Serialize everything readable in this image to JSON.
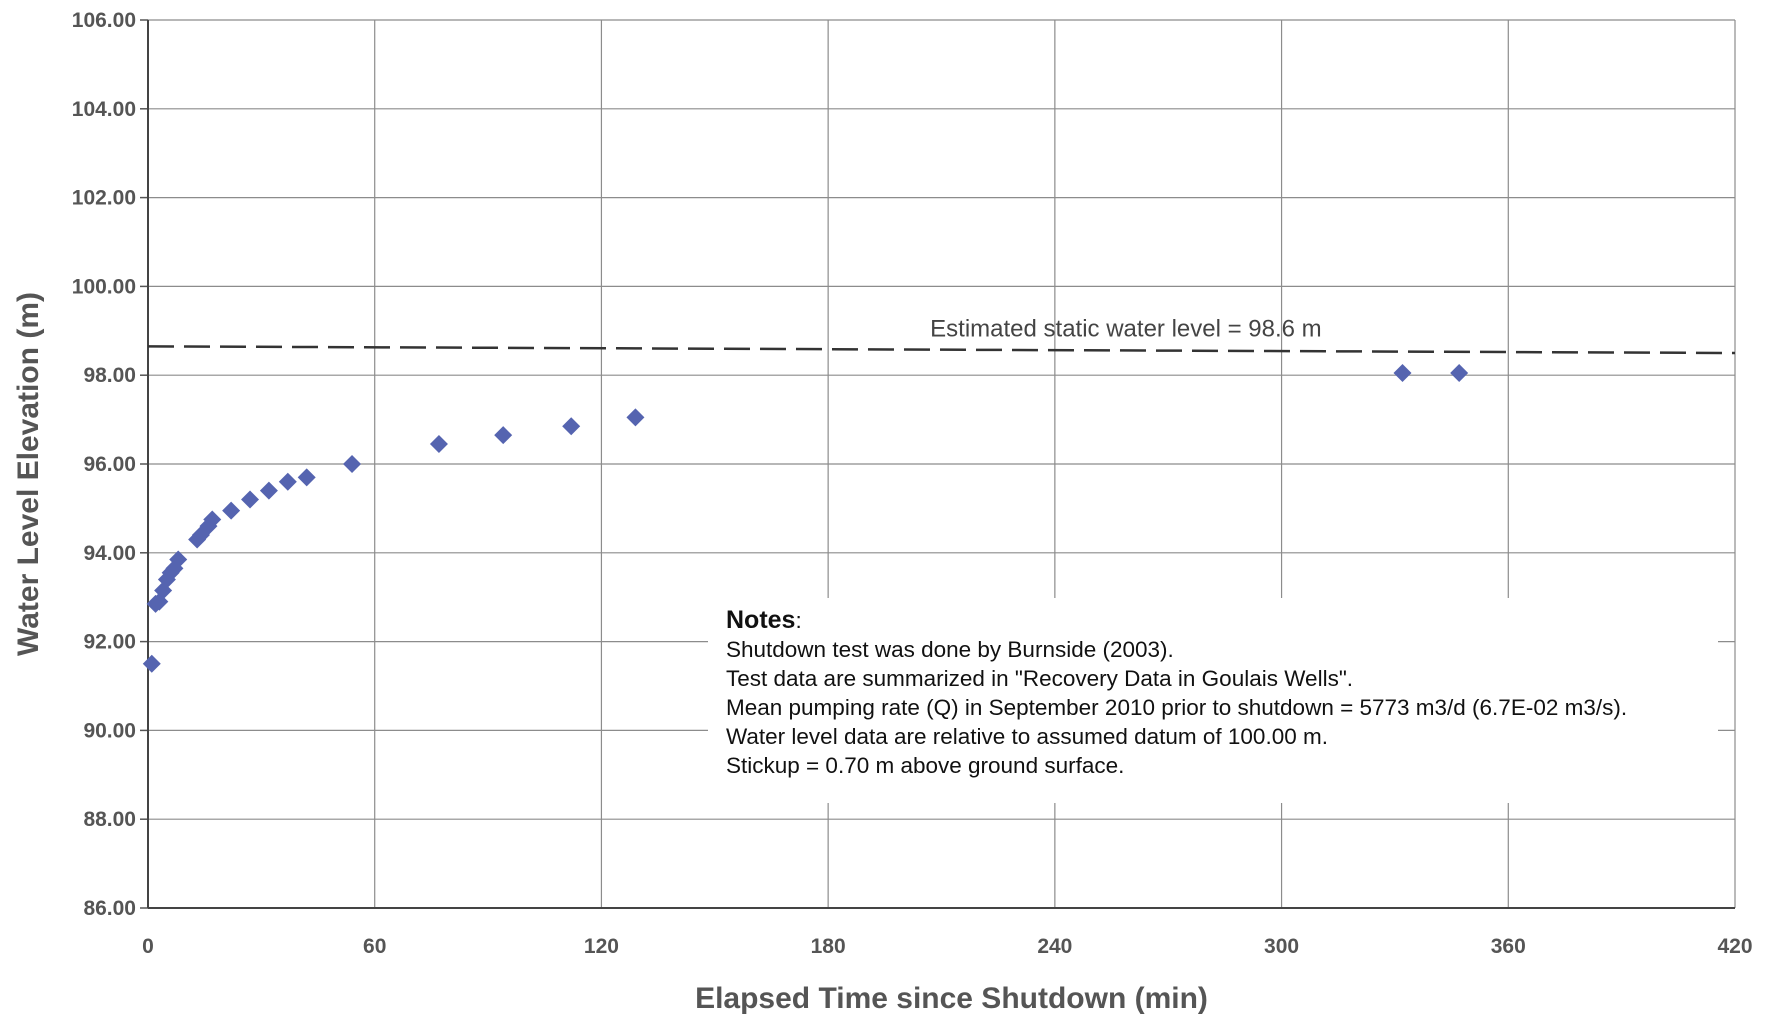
{
  "chart_data": {
    "type": "scatter",
    "xlabel": "Elapsed Time since Shutdown (min)",
    "ylabel": "Water Level Elevation (m)",
    "xlim": [
      0,
      420
    ],
    "ylim": [
      86,
      106
    ],
    "xticks": [
      0,
      60,
      120,
      180,
      240,
      300,
      360,
      420
    ],
    "yticks": [
      "86.00",
      "88.00",
      "90.00",
      "92.00",
      "94.00",
      "96.00",
      "98.00",
      "100.00",
      "102.00",
      "104.00",
      "106.00"
    ],
    "grid": true,
    "marker": "diamond",
    "marker_color": "#5564b0",
    "series": [
      {
        "x": [
          1,
          2,
          3,
          4,
          5,
          6,
          7,
          8,
          13,
          14,
          16,
          17,
          22,
          27,
          32,
          37,
          42,
          54,
          77,
          94,
          112,
          129,
          332,
          347
        ],
        "y": [
          91.5,
          92.85,
          92.9,
          93.15,
          93.4,
          93.55,
          93.65,
          93.85,
          94.3,
          94.4,
          94.6,
          94.75,
          94.95,
          95.2,
          95.4,
          95.6,
          95.7,
          96.0,
          96.45,
          96.65,
          96.85,
          97.05,
          98.05,
          98.05
        ]
      }
    ],
    "annotations": [
      {
        "text": "Estimated static water level = 98.6 m",
        "style": "dashed-line",
        "x_range": [
          0,
          420
        ],
        "y_start": 98.65,
        "y_end": 98.5
      }
    ]
  },
  "notes": {
    "title": "Notes",
    "lines": [
      "Shutdown test was done by Burnside (2003).",
      "Test data are summarized in \"Recovery Data in Goulais Wells\".",
      "Mean pumping rate (Q) in September 2010 prior to shutdown = 5773 m3/d (6.7E-02 m3/s).",
      "Water level data are relative to assumed datum of 100.00 m.",
      "Stickup = 0.70 m above ground surface."
    ]
  }
}
